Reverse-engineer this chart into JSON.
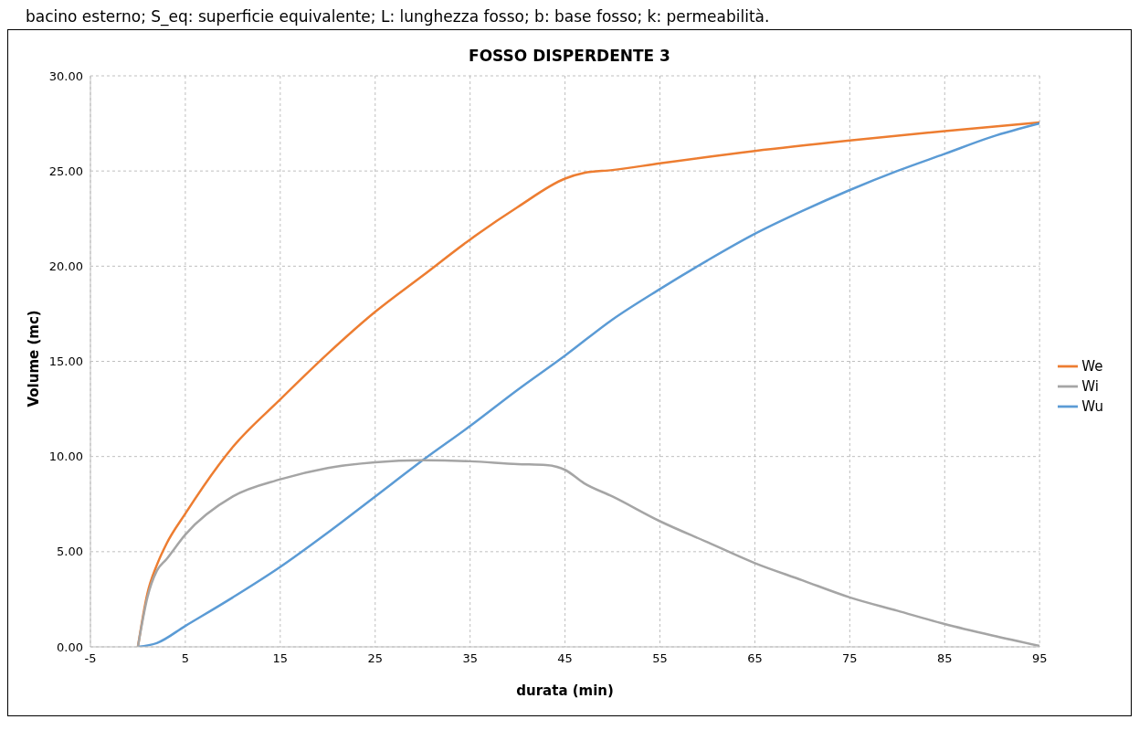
{
  "chart_data": {
    "type": "line",
    "title": "FOSSO DISPERDENTE 3",
    "xlabel": "durata (min)",
    "ylabel": "Volume (mc)",
    "annotations": [
      "bacino esterno; S_eq: superficie equivalente; L: lunghezza fosso; b: base fosso; k: permeabilità."
    ],
    "xlim": [
      -5,
      95
    ],
    "xticks": [
      -5,
      5,
      15,
      25,
      35,
      45,
      55,
      65,
      75,
      85,
      95
    ],
    "ylim": [
      0,
      30
    ],
    "yticks": [
      {
        "value": 0,
        "label": "0.00"
      },
      {
        "value": 5,
        "label": "5.00"
      },
      {
        "value": 10,
        "label": "10.00"
      },
      {
        "value": 15,
        "label": "15.00"
      },
      {
        "value": 20,
        "label": "20.00"
      },
      {
        "value": 25,
        "label": "25.00"
      },
      {
        "value": 30,
        "label": "30.00"
      }
    ],
    "grid": true,
    "legend": "right",
    "marker": "none",
    "line_style": "solid",
    "series": [
      {
        "name": "We",
        "color": "#ed7d31",
        "x": [
          0,
          1,
          2,
          3,
          5,
          10,
          15,
          20,
          25,
          30,
          35,
          40,
          45,
          47,
          50,
          55,
          65,
          75,
          85,
          95
        ],
        "values": [
          0,
          2.8,
          4.3,
          5.4,
          7,
          10.5,
          13,
          15.4,
          17.6,
          19.5,
          21.4,
          23.1,
          24.6,
          24.9,
          25.05,
          25.4,
          26.05,
          26.6,
          27.1,
          27.55
        ]
      },
      {
        "name": "Wu",
        "color": "#5b9bd5",
        "x": [
          0,
          2,
          5,
          10,
          15,
          20,
          25,
          30,
          35,
          40,
          45,
          50,
          55,
          60,
          65,
          70,
          75,
          80,
          85,
          90,
          95
        ],
        "values": [
          0,
          0.2,
          1.1,
          2.6,
          4.2,
          6,
          7.9,
          9.8,
          11.6,
          13.5,
          15.3,
          17.2,
          18.8,
          20.3,
          21.7,
          22.9,
          24,
          25,
          25.9,
          26.8,
          27.5
        ]
      },
      {
        "name": "Wi",
        "color": "#a5a5a5",
        "x": [
          0,
          1,
          2,
          3,
          5,
          10,
          15,
          20,
          25,
          30,
          35,
          40,
          43,
          45,
          47,
          50,
          55,
          60,
          65,
          70,
          75,
          80,
          85,
          90,
          95
        ],
        "values": [
          0,
          2.6,
          4,
          4.6,
          5.9,
          7.9,
          8.8,
          9.4,
          9.7,
          9.8,
          9.75,
          9.6,
          9.55,
          9.3,
          8.6,
          7.9,
          6.6,
          5.5,
          4.4,
          3.5,
          2.6,
          1.9,
          1.2,
          0.6,
          0.05
        ]
      }
    ]
  }
}
